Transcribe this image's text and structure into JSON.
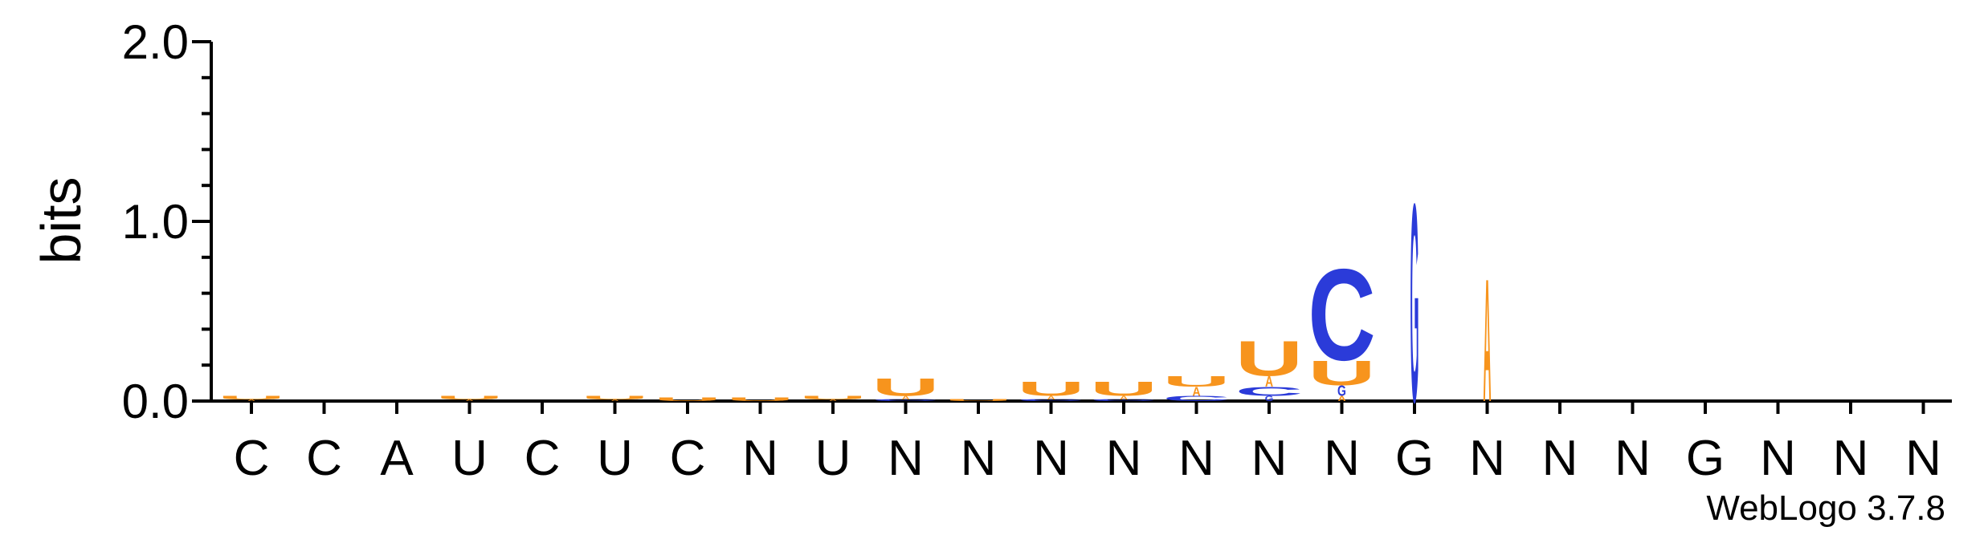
{
  "chart_data": {
    "type": "sequence-logo",
    "ylabel": "bits",
    "ylim": [
      0,
      2.0
    ],
    "yticks": [
      {
        "value": 0.0,
        "label": "0.0"
      },
      {
        "value": 1.0,
        "label": "1.0"
      },
      {
        "value": 2.0,
        "label": "2.0"
      }
    ],
    "credit": "WebLogo 3.7.8",
    "colors": {
      "U": "#f7941d",
      "C": "#2b3bd9",
      "A": "#f7941d",
      "G": "#2b3bd9"
    },
    "positions": [
      {
        "label": "C",
        "letters": [
          {
            "char": "U",
            "bits": 0.02
          },
          {
            "char": "A",
            "bits": 0.01
          }
        ]
      },
      {
        "label": "C",
        "letters": []
      },
      {
        "label": "A",
        "letters": []
      },
      {
        "label": "U",
        "letters": [
          {
            "char": "U",
            "bits": 0.02
          },
          {
            "char": "A",
            "bits": 0.01
          }
        ]
      },
      {
        "label": "C",
        "letters": []
      },
      {
        "label": "U",
        "letters": [
          {
            "char": "U",
            "bits": 0.02
          },
          {
            "char": "A",
            "bits": 0.01
          }
        ]
      },
      {
        "label": "C",
        "letters": [
          {
            "char": "U",
            "bits": 0.02
          }
        ]
      },
      {
        "label": "N",
        "letters": [
          {
            "char": "U",
            "bits": 0.02
          }
        ]
      },
      {
        "label": "U",
        "letters": [
          {
            "char": "U",
            "bits": 0.02
          },
          {
            "char": "A",
            "bits": 0.01
          }
        ]
      },
      {
        "label": "N",
        "letters": [
          {
            "char": "U",
            "bits": 0.1
          },
          {
            "char": "A",
            "bits": 0.02
          },
          {
            "char": "C",
            "bits": 0.01
          }
        ]
      },
      {
        "label": "N",
        "letters": [
          {
            "char": "U",
            "bits": 0.01
          }
        ]
      },
      {
        "label": "N",
        "letters": [
          {
            "char": "U",
            "bits": 0.08
          },
          {
            "char": "A",
            "bits": 0.02
          },
          {
            "char": "C",
            "bits": 0.01
          }
        ]
      },
      {
        "label": "N",
        "letters": [
          {
            "char": "U",
            "bits": 0.08
          },
          {
            "char": "A",
            "bits": 0.02
          },
          {
            "char": "C",
            "bits": 0.01
          }
        ]
      },
      {
        "label": "N",
        "letters": [
          {
            "char": "U",
            "bits": 0.06
          },
          {
            "char": "A",
            "bits": 0.05
          },
          {
            "char": "C",
            "bits": 0.03
          }
        ]
      },
      {
        "label": "N",
        "letters": [
          {
            "char": "U",
            "bits": 0.2
          },
          {
            "char": "A",
            "bits": 0.06
          },
          {
            "char": "C",
            "bits": 0.05
          },
          {
            "char": "G",
            "bits": 0.03
          }
        ]
      },
      {
        "label": "N",
        "letters": [
          {
            "char": "C",
            "bits": 0.52
          },
          {
            "char": "U",
            "bits": 0.14
          },
          {
            "char": "G",
            "bits": 0.06
          },
          {
            "char": "A",
            "bits": 0.03
          }
        ]
      },
      {
        "label": "G",
        "letters": [
          {
            "char": "G",
            "bits": 1.13
          }
        ]
      },
      {
        "label": "N",
        "letters": [
          {
            "char": "A",
            "bits": 0.7
          }
        ]
      },
      {
        "label": "N",
        "letters": []
      },
      {
        "label": "N",
        "letters": []
      },
      {
        "label": "G",
        "letters": []
      },
      {
        "label": "N",
        "letters": []
      },
      {
        "label": "N",
        "letters": []
      },
      {
        "label": "N",
        "letters": []
      }
    ]
  }
}
